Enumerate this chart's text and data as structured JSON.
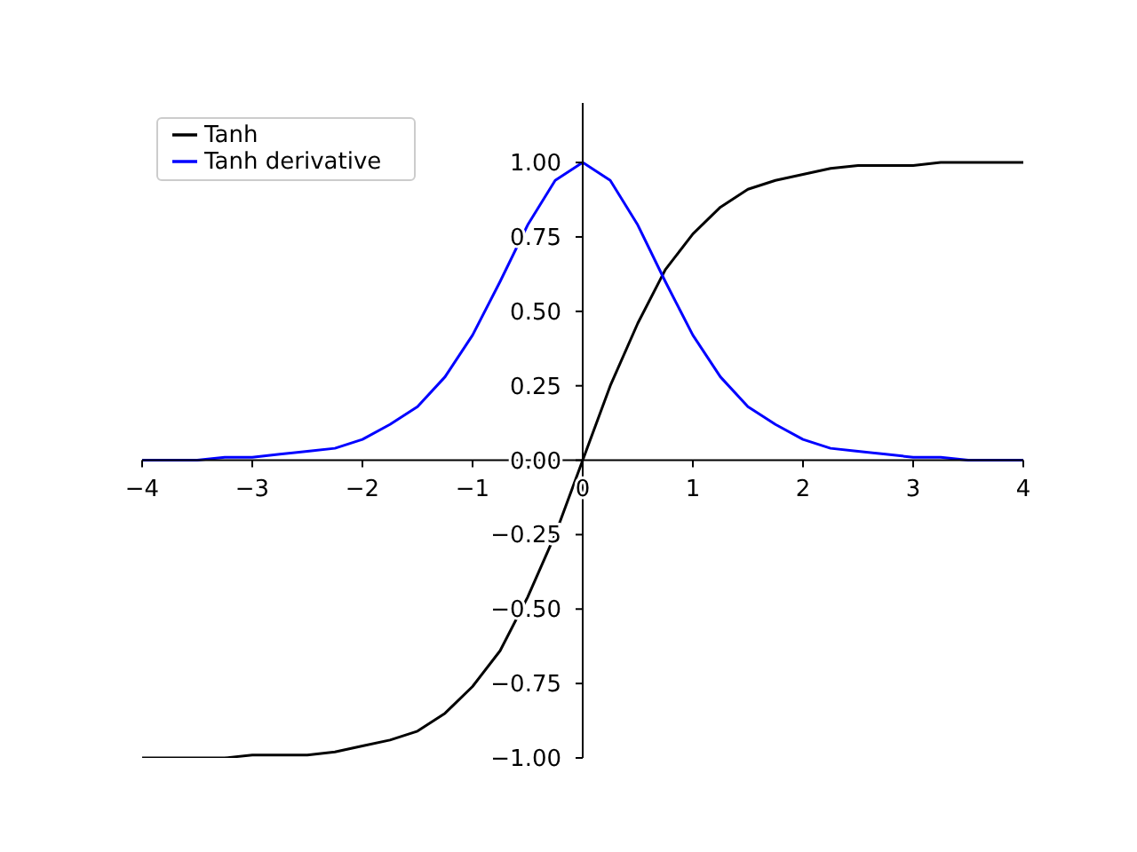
{
  "chart_data": {
    "type": "line",
    "x": [
      -4,
      -3.75,
      -3.5,
      -3.25,
      -3,
      -2.75,
      -2.5,
      -2.25,
      -2,
      -1.75,
      -1.5,
      -1.25,
      -1,
      -0.75,
      -0.5,
      -0.25,
      0,
      0.25,
      0.5,
      0.75,
      1,
      1.25,
      1.5,
      1.75,
      2,
      2.25,
      2.5,
      2.75,
      3,
      3.25,
      3.5,
      3.75,
      4
    ],
    "series": [
      {
        "name": "Tanh",
        "color": "#000000",
        "values": [
          -1.0,
          -1.0,
          -1.0,
          -1.0,
          -0.99,
          -0.99,
          -0.99,
          -0.98,
          -0.96,
          -0.94,
          -0.91,
          -0.85,
          -0.76,
          -0.64,
          -0.46,
          -0.25,
          0,
          0.25,
          0.46,
          0.64,
          0.76,
          0.85,
          0.91,
          0.94,
          0.96,
          0.98,
          0.99,
          0.99,
          0.99,
          1.0,
          1.0,
          1.0,
          1.0
        ]
      },
      {
        "name": "Tanh derivative",
        "color": "#0000ff",
        "values": [
          0.0,
          0.0,
          0.0,
          0.01,
          0.01,
          0.02,
          0.03,
          0.04,
          0.07,
          0.12,
          0.18,
          0.28,
          0.42,
          0.6,
          0.79,
          0.94,
          1.0,
          0.94,
          0.79,
          0.6,
          0.42,
          0.28,
          0.18,
          0.12,
          0.07,
          0.04,
          0.03,
          0.02,
          0.01,
          0.01,
          0.0,
          0.0,
          0.0
        ]
      }
    ],
    "xlim": [
      -4,
      4
    ],
    "xticks": [
      {
        "value": -4,
        "label": "−4"
      },
      {
        "value": -3,
        "label": "−3"
      },
      {
        "value": -2,
        "label": "−2"
      },
      {
        "value": -1,
        "label": "−1"
      },
      {
        "value": 0,
        "label": "0"
      },
      {
        "value": 1,
        "label": "1"
      },
      {
        "value": 2,
        "label": "2"
      },
      {
        "value": 3,
        "label": "3"
      },
      {
        "value": 4,
        "label": "4"
      }
    ],
    "ylim": [
      -1,
      1.2
    ],
    "yticks": [
      {
        "value": -1,
        "label": "−1.00"
      },
      {
        "value": -0.75,
        "label": "−0.75"
      },
      {
        "value": -0.5,
        "label": "−0.50"
      },
      {
        "value": -0.25,
        "label": "−0.25"
      },
      {
        "value": 0,
        "label": "0.00"
      },
      {
        "value": 0.25,
        "label": "0.25"
      },
      {
        "value": 0.5,
        "label": "0.50"
      },
      {
        "value": 0.75,
        "label": "0.75"
      },
      {
        "value": 1,
        "label": "1.00"
      }
    ],
    "legend": "top left"
  }
}
